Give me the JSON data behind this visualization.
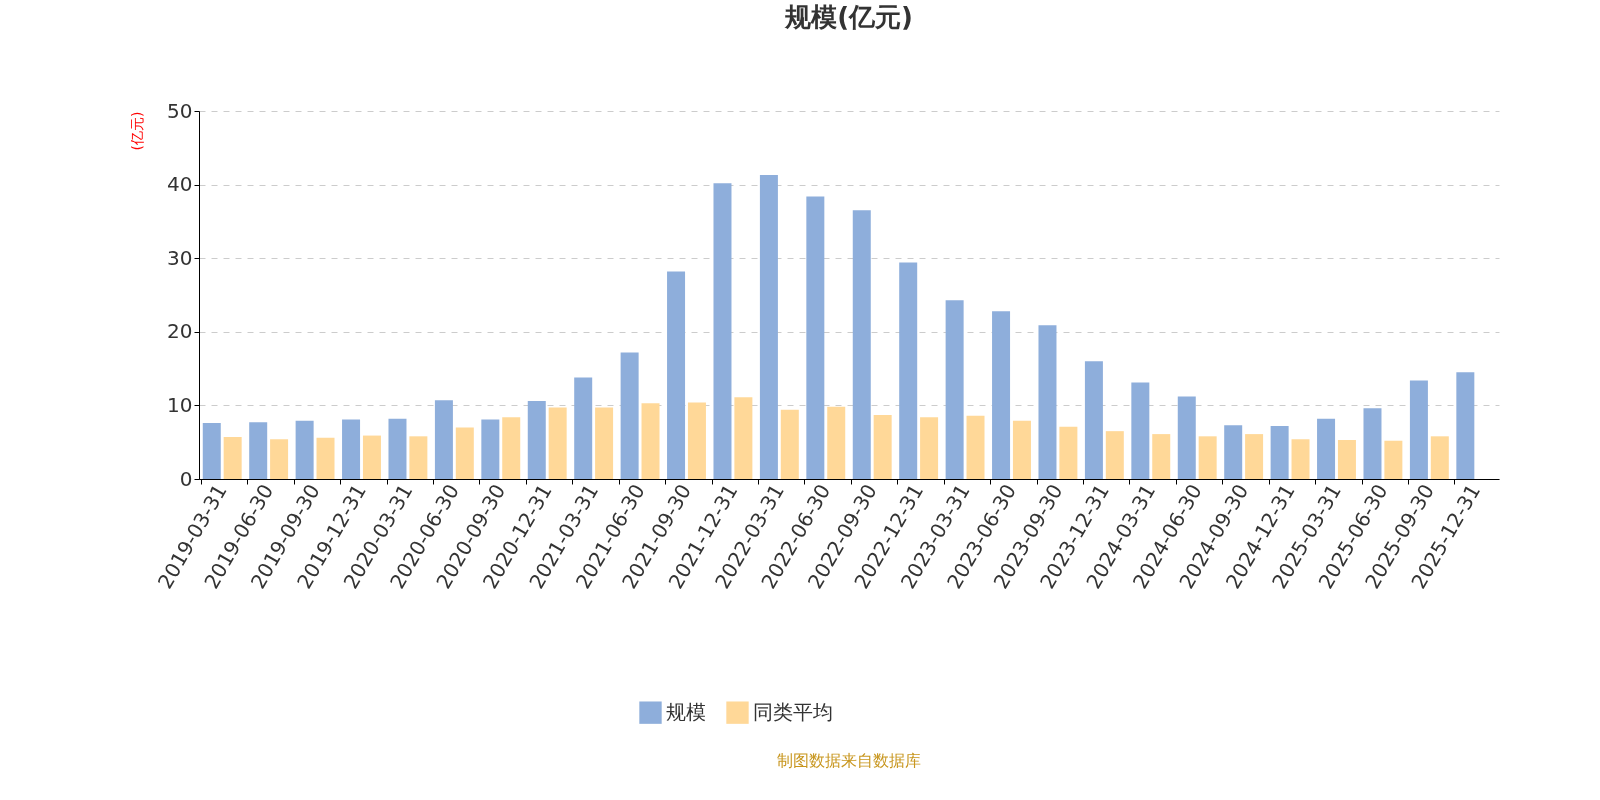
{
  "chart_data": {
    "type": "bar",
    "title": "规模(亿元)",
    "ylabel": "(亿元)",
    "categories": [
      "2019-03-31",
      "2019-06-30",
      "2019-09-30",
      "2019-12-31",
      "2020-03-31",
      "2020-06-30",
      "2020-09-30",
      "2020-12-31",
      "2021-03-31",
      "2021-06-30",
      "2021-09-30",
      "2021-12-31",
      "2022-03-31",
      "2022-06-30",
      "2022-09-30",
      "2022-12-31",
      "2023-03-31",
      "2023-06-30",
      "2023-09-30",
      "2023-12-31",
      "2024-03-31",
      "2024-06-30",
      "2024-09-30",
      "2024-12-31",
      "2025-03-31",
      "2025-06-30",
      "2025-09-30",
      "2025-12-31"
    ],
    "series": [
      {
        "name": "规模",
        "color": "#8eaedb",
        "values": [
          7.6,
          7.7,
          7.9,
          8.1,
          8.2,
          10.7,
          8.1,
          10.6,
          13.8,
          17.2,
          28.2,
          40.2,
          41.3,
          38.4,
          36.5,
          29.4,
          24.3,
          22.8,
          20.9,
          16.0,
          13.1,
          11.2,
          7.3,
          7.2,
          8.2,
          9.6,
          13.4,
          14.5
        ]
      },
      {
        "name": "同类平均",
        "color": "#ffd898",
        "values": [
          5.7,
          5.4,
          5.6,
          5.9,
          5.8,
          7.0,
          8.4,
          9.7,
          9.7,
          10.3,
          10.4,
          11.1,
          9.4,
          9.8,
          8.7,
          8.4,
          8.6,
          7.9,
          7.1,
          6.5,
          6.1,
          5.8,
          6.1,
          5.4,
          5.3,
          5.2,
          5.8,
          null
        ]
      }
    ],
    "ylim": [
      0,
      50
    ],
    "yticks": [
      0,
      10,
      20,
      30,
      40,
      50
    ],
    "grid": "y",
    "legend": "bottom",
    "annotations": [
      "制图数据来自数据库"
    ]
  }
}
